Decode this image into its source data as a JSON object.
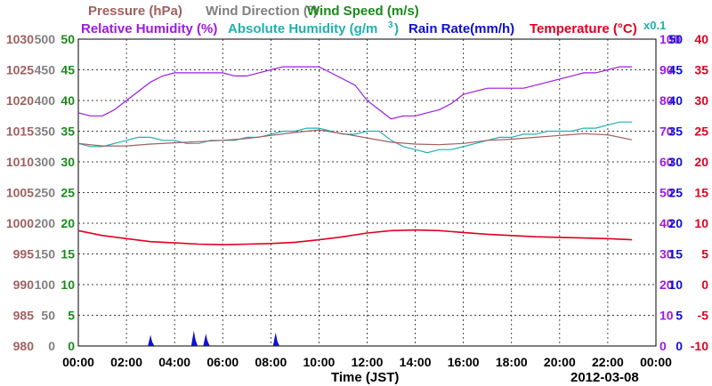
{
  "chart_data": {
    "type": "line",
    "date": "2012-03-08",
    "xlabel": "Time (JST)",
    "x_ticks": [
      "00:00",
      "02:00",
      "04:00",
      "06:00",
      "08:00",
      "10:00",
      "12:00",
      "14:00",
      "16:00",
      "18:00",
      "20:00",
      "22:00",
      "00:00"
    ],
    "grid": true,
    "legend_top": [
      {
        "text": "Pressure (hPa)",
        "color": "#a0605f"
      },
      {
        "text": "Wind Direction (°)",
        "color": "#808080"
      },
      {
        "text": "Wind Speed (m/s)",
        "color": "#1a8a1a"
      }
    ],
    "legend_second": [
      {
        "text": "Relative Humidity (%)",
        "color": "#9c1ce0"
      },
      {
        "text": "Absolute Humidity (g/m",
        "color": "#20b0b0"
      },
      {
        "text": "3",
        "color": "#20b0b0"
      },
      {
        "text": ")",
        "color": "#20b0b0"
      },
      {
        "text": "Rain Rate(mm/h)",
        "color": "#1010d0"
      },
      {
        "text": "Temperature (°C)",
        "color": "#e00020"
      }
    ],
    "x01_label": "x0.1",
    "axes": {
      "pressure": {
        "ticks": [
          "1030",
          "1025",
          "1020",
          "1015",
          "1010",
          "1005",
          "1000",
          "995",
          "990",
          "985",
          "980"
        ],
        "color": "#a0605f",
        "range": [
          980,
          1030
        ]
      },
      "wind_direction": {
        "ticks": [
          "500",
          "450",
          "400",
          "350",
          "300",
          "250",
          "200",
          "150",
          "100",
          "50",
          "0"
        ],
        "color": "#808080",
        "range": [
          0,
          500
        ]
      },
      "wind_speed": {
        "ticks": [
          "50",
          "45",
          "40",
          "35",
          "30",
          "25",
          "20",
          "15",
          "10",
          "5",
          "0"
        ],
        "color": "#1a8a1a",
        "range": [
          0,
          50
        ]
      },
      "relative_humidity": {
        "ticks": [
          "100",
          "90",
          "80",
          "70",
          "60",
          "50",
          "40",
          "30",
          "20",
          "10",
          "0"
        ],
        "color": "#9c1ce0",
        "range": [
          0,
          100
        ]
      },
      "rain_rate": {
        "ticks": [
          "50",
          "45",
          "40",
          "35",
          "30",
          "25",
          "20",
          "15",
          "10",
          "5",
          "0"
        ],
        "color": "#1010d0",
        "range": [
          0,
          50
        ]
      },
      "temperature": {
        "ticks": [
          "40",
          "35",
          "30",
          "25",
          "20",
          "15",
          "10",
          "5",
          "0",
          "-5",
          "-10"
        ],
        "color": "#e00020",
        "range": [
          -10,
          40
        ]
      }
    },
    "series": [
      {
        "name": "Relative Humidity (%)",
        "color": "#9c1ce0",
        "axis": "relative_humidity",
        "x": [
          0,
          0.5,
          1,
          1.5,
          2,
          2.5,
          3,
          3.5,
          4,
          4.5,
          5,
          5.5,
          6,
          6.5,
          7,
          7.5,
          8,
          8.5,
          9,
          9.5,
          10,
          10.5,
          11,
          11.5,
          12,
          12.5,
          13,
          13.5,
          14,
          14.5,
          15,
          15.5,
          16,
          16.5,
          17,
          17.5,
          18,
          18.5,
          19,
          19.5,
          20,
          20.5,
          21,
          21.5,
          22,
          22.5,
          23
        ],
        "y": [
          76,
          75,
          75,
          77,
          80,
          83,
          86,
          88,
          89,
          89,
          89,
          89,
          89,
          88,
          88,
          89,
          90,
          91,
          91,
          91,
          91,
          89,
          87,
          85,
          80,
          77,
          74,
          75,
          75,
          76,
          77,
          79,
          82,
          83,
          84,
          84,
          84,
          84,
          85,
          86,
          87,
          88,
          89,
          89,
          90,
          91,
          91
        ]
      },
      {
        "name": "Absolute Humidity (x0.1 g/m3)",
        "color": "#20b0b0",
        "axis": "relative_humidity",
        "x": [
          0,
          0.5,
          1,
          1.5,
          2,
          2.5,
          3,
          3.5,
          4,
          4.5,
          5,
          5.5,
          6,
          6.5,
          7,
          7.5,
          8,
          8.5,
          9,
          9.5,
          10,
          10.5,
          11,
          11.5,
          12,
          12.5,
          13,
          13.5,
          14,
          14.5,
          15,
          15.5,
          16,
          16.5,
          17,
          17.5,
          18,
          18.5,
          19,
          19.5,
          20,
          20.5,
          21,
          21.5,
          22,
          22.5,
          23
        ],
        "y": [
          66,
          65,
          65,
          66,
          67,
          68,
          68,
          67,
          67,
          66,
          66,
          67,
          67,
          67,
          68,
          68,
          69,
          70,
          70,
          71,
          71,
          70,
          69,
          69,
          70,
          70,
          67,
          65,
          64,
          63,
          64,
          64,
          65,
          66,
          67,
          68,
          68,
          69,
          69,
          70,
          70,
          70,
          71,
          71,
          72,
          73,
          73
        ]
      },
      {
        "name": "Pressure (hPa)",
        "color": "#a0605f",
        "axis": "pressure",
        "x": [
          0,
          1,
          2,
          3,
          4,
          5,
          6,
          7,
          8,
          9,
          10,
          11,
          12,
          13,
          14,
          15,
          16,
          17,
          18,
          19,
          20,
          21,
          22,
          23
        ],
        "y": [
          1013.0,
          1012.6,
          1012.6,
          1012.9,
          1013.1,
          1013.3,
          1013.5,
          1013.8,
          1014.3,
          1014.8,
          1015.2,
          1014.6,
          1013.9,
          1013.2,
          1012.9,
          1012.8,
          1013.0,
          1013.5,
          1013.7,
          1014.0,
          1014.3,
          1014.6,
          1014.4,
          1013.6
        ]
      },
      {
        "name": "Temperature (°C)",
        "color": "#e00020",
        "axis": "temperature",
        "x": [
          0,
          1,
          2,
          3,
          4,
          5,
          6,
          7,
          8,
          9,
          10,
          11,
          12,
          13,
          14,
          15,
          16,
          17,
          18,
          19,
          20,
          21,
          22,
          23
        ],
        "y": [
          8.8,
          8.0,
          7.5,
          7.0,
          6.8,
          6.6,
          6.5,
          6.6,
          6.7,
          6.9,
          7.3,
          7.8,
          8.4,
          8.8,
          8.9,
          8.8,
          8.5,
          8.2,
          8.0,
          7.8,
          7.7,
          7.6,
          7.5,
          7.3
        ]
      },
      {
        "name": "Rain Rate(mm/h)",
        "color": "#1010d0",
        "axis": "rain_rate",
        "style": "spikes",
        "x": [
          3.0,
          3.05,
          4.8,
          4.85,
          5.3,
          5.35,
          8.2,
          8.25
        ],
        "y": [
          1.8,
          0.8,
          2.5,
          1.2,
          2.0,
          1.0,
          2.2,
          0.9
        ]
      }
    ]
  }
}
